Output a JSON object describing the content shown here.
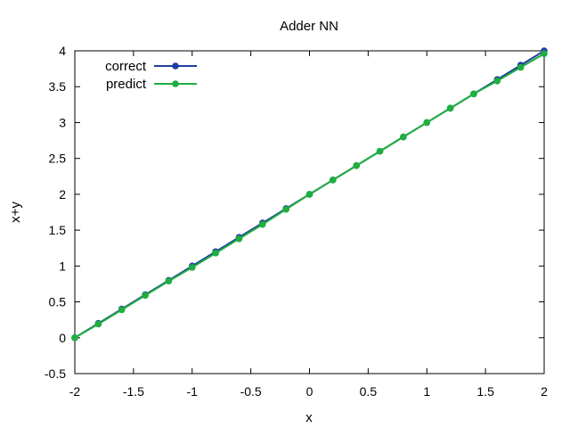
{
  "chart_data": {
    "type": "line",
    "title": "Adder NN",
    "xlabel": "x",
    "ylabel": "x+y",
    "xlim": [
      -2,
      2
    ],
    "ylim": [
      -0.5,
      4
    ],
    "xticks": [
      "-2",
      "-1.5",
      "-1",
      "-0.5",
      "0",
      "0.5",
      "1",
      "1.5",
      "2"
    ],
    "xtick_values": [
      -2,
      -1.5,
      -1,
      -0.5,
      0,
      0.5,
      1,
      1.5,
      2
    ],
    "yticks": [
      "-0.5",
      "0",
      "0.5",
      "1",
      "1.5",
      "2",
      "2.5",
      "3",
      "3.5",
      "4"
    ],
    "ytick_values": [
      -0.5,
      0,
      0.5,
      1,
      1.5,
      2,
      2.5,
      3,
      3.5,
      4
    ],
    "grid": false,
    "legend_position": "top-left",
    "x": [
      -2.0,
      -1.8,
      -1.6,
      -1.4,
      -1.2,
      -1.0,
      -0.8,
      -0.6,
      -0.4,
      -0.2,
      0.0,
      0.2,
      0.4,
      0.6,
      0.8,
      1.0,
      1.2,
      1.4,
      1.6,
      1.8,
      2.0
    ],
    "series": [
      {
        "name": "correct",
        "color": "#1f3f9f",
        "values": [
          0.0,
          0.2,
          0.4,
          0.6,
          0.8,
          1.0,
          1.2,
          1.4,
          1.6,
          1.8,
          2.0,
          2.2,
          2.4,
          2.6,
          2.8,
          3.0,
          3.2,
          3.4,
          3.6,
          3.8,
          4.0
        ]
      },
      {
        "name": "predict",
        "color": "#1fae3f",
        "values": [
          0.0,
          0.19,
          0.39,
          0.59,
          0.79,
          0.98,
          1.18,
          1.38,
          1.58,
          1.79,
          2.0,
          2.2,
          2.4,
          2.6,
          2.8,
          3.0,
          3.2,
          3.4,
          3.58,
          3.77,
          3.96
        ]
      }
    ]
  }
}
